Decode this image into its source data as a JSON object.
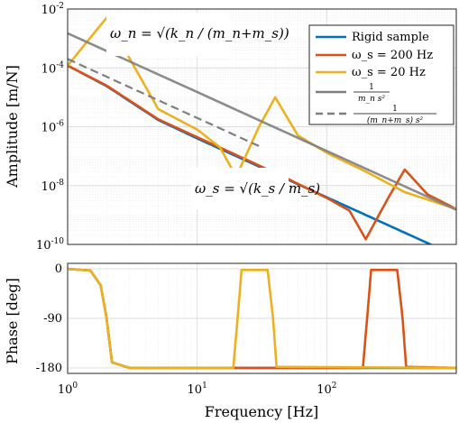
{
  "chart_data": [
    {
      "type": "line",
      "panel": "amplitude",
      "ylabel": "Amplitude [m/N]",
      "xscale": "log",
      "yscale": "log",
      "xlim": [
        1,
        1000
      ],
      "ylim": [
        1e-10,
        0.01
      ],
      "grid": true,
      "legend_location": "top-right",
      "xtick_labels": [
        "10^0",
        "10^1",
        "10^2"
      ],
      "ytick_labels": [
        "10^-10",
        "10^-8",
        "10^-6",
        "10^-4",
        "10^-2"
      ],
      "series": [
        {
          "name": "Rigid sample",
          "color": "#0072BD",
          "style": "solid",
          "x": [
            1,
            2,
            5,
            10,
            20,
            50,
            100,
            200,
            400,
            1000
          ],
          "y": [
            0.00012,
            2.4e-05,
            1.7e-06,
            4e-07,
            1e-07,
            1.6e-08,
            4e-09,
            1e-09,
            2.5e-10,
            4e-11
          ]
        },
        {
          "name": "ω_s = 200 Hz",
          "color": "#D95319",
          "style": "solid",
          "x": [
            1,
            2,
            5,
            10,
            20,
            50,
            100,
            150,
            200,
            300,
            400,
            600,
            1000
          ],
          "y": [
            0.00012,
            2.5e-05,
            1.8e-06,
            4.4e-07,
            1.1e-07,
            1.7e-08,
            3.8e-09,
            1.4e-09,
            1.5e-10,
            4e-09,
            3.5e-08,
            5e-09,
            1.6e-09
          ]
        },
        {
          "name": "ω_s = 20 Hz",
          "color": "#EDB120",
          "style": "solid",
          "x": [
            1,
            2,
            5,
            10,
            15,
            20,
            30,
            40,
            60,
            100,
            200,
            400,
            1000
          ],
          "y": [
            0.00012,
            0.005,
            4e-06,
            8e-07,
            2e-07,
            2e-08,
            1e-06,
            1e-05,
            5e-07,
            1.3e-07,
            3e-08,
            6e-09,
            1.6e-09
          ]
        },
        {
          "name": "1/(m_n s^2)",
          "color": "#7F7F7F",
          "style": "solid",
          "x": [
            1,
            1000
          ],
          "y": [
            0.0015,
            1.5e-09
          ]
        },
        {
          "name": "1/((m_n+m_s) s^2)",
          "color": "#7F7F7F",
          "style": "dashed",
          "x": [
            1,
            30
          ],
          "y": [
            0.0002,
            2.2e-07
          ]
        }
      ],
      "annotations": [
        {
          "text": "ω_n = √(k_n/(m_n+m_s))",
          "x": 2.3,
          "y": 0.003
        },
        {
          "text": "ω_s = √(k_s/m_s)",
          "x": 10,
          "y": 1.5e-08
        }
      ]
    },
    {
      "type": "line",
      "panel": "phase",
      "xlabel": "Frequency [Hz]",
      "ylabel": "Phase [deg]",
      "xscale": "log",
      "xlim": [
        1,
        1000
      ],
      "ylim": [
        -190,
        10
      ],
      "grid": true,
      "ytick_labels": [
        "0",
        "-90",
        "-180"
      ],
      "xtick_labels": [
        "10^0",
        "10^1",
        "10^2"
      ],
      "series": [
        {
          "name": "Rigid sample",
          "color": "#0072BD",
          "x": [
            1,
            1.5,
            1.8,
            2.0,
            2.2,
            3,
            1000
          ],
          "y": [
            0,
            -3,
            -30,
            -90,
            -170,
            -180,
            -180
          ]
        },
        {
          "name": "ω_s = 200 Hz",
          "color": "#D95319",
          "x": [
            1,
            1.5,
            1.8,
            2.0,
            2.2,
            3,
            190,
            205,
            220,
            350,
            385,
            410,
            1000
          ],
          "y": [
            0,
            -3,
            -30,
            -90,
            -170,
            -180,
            -180,
            -90,
            -2,
            -2,
            -90,
            -178,
            -180
          ]
        },
        {
          "name": "ω_s = 20 Hz",
          "color": "#EDB120",
          "x": [
            1,
            1.5,
            1.8,
            2.0,
            2.2,
            3,
            19,
            20.5,
            22,
            35,
            38.5,
            41,
            1000
          ],
          "y": [
            0,
            -3,
            -30,
            -90,
            -170,
            -180,
            -180,
            -90,
            -2,
            -2,
            -90,
            -178,
            -180
          ]
        }
      ]
    }
  ],
  "legend": [
    {
      "label_main": "Rigid sample",
      "color": "#0072BD",
      "dash": false
    },
    {
      "label_main": "ω_s = 200 Hz",
      "color": "#D95319",
      "dash": false
    },
    {
      "label_main": "ω_s = 20 Hz",
      "color": "#EDB120",
      "dash": false
    },
    {
      "label_num": "1",
      "label_den": "m_n s²",
      "color": "#7F7F7F",
      "dash": false
    },
    {
      "label_num": "1",
      "label_den": "(m_n+m_s) s²",
      "color": "#7F7F7F",
      "dash": true
    }
  ],
  "labels": {
    "amp_ylabel": "Amplitude [m/N]",
    "phase_ylabel": "Phase [deg]",
    "xlabel": "Frequency [Hz]",
    "annot_wn": "ω_n = √(k_n / (m_n+m_s))",
    "annot_ws": "ω_s = √(k_s / m_s)"
  },
  "colors": {
    "rigid": "#0072BD",
    "ws200": "#D95319",
    "ws20": "#EDB120",
    "asymptote": "#7F7F7F"
  }
}
